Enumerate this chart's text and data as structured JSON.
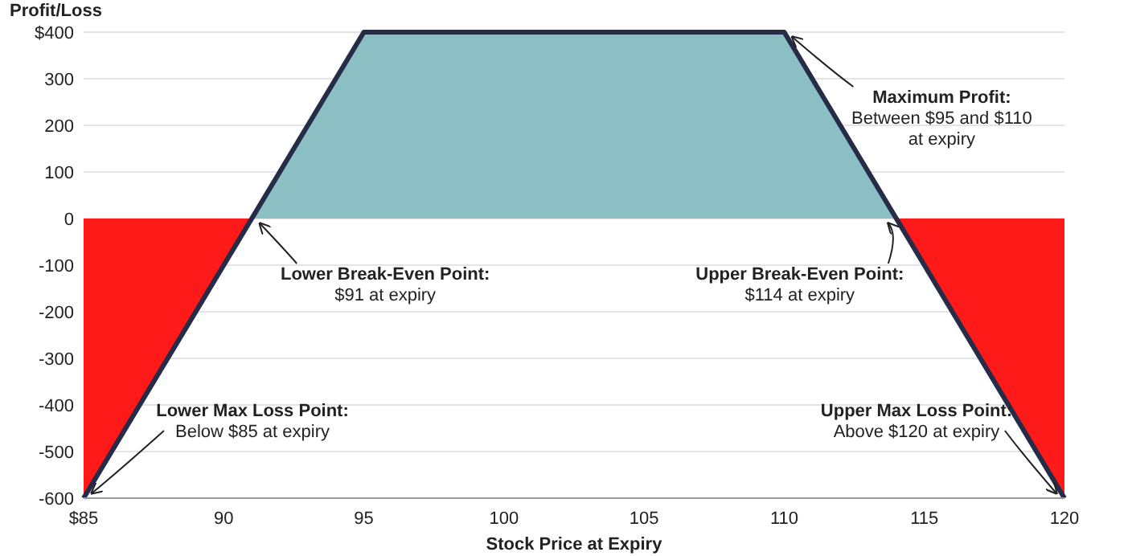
{
  "chart_data": {
    "type": "line",
    "xlabel": "Stock Price at Expiry",
    "ylabel": "Profit/Loss",
    "xlim": [
      85,
      120
    ],
    "xticks": [
      {
        "value": 85,
        "label": "$85"
      },
      90,
      95,
      100,
      105,
      110,
      115,
      120
    ],
    "ylim": [
      -600,
      400
    ],
    "yticks": [
      -600,
      -500,
      -400,
      -300,
      -200,
      -100,
      0,
      100,
      200,
      300,
      {
        "value": 400,
        "label": "$400"
      }
    ],
    "grid": "y",
    "marker": "none",
    "line_style": "solid",
    "series": [
      {
        "type": "area",
        "color": "#ff1a1a",
        "x": [
          85,
          91
        ],
        "values": [
          -600,
          0
        ]
      },
      {
        "type": "area",
        "color": "#8bbfc4",
        "x": [
          91,
          95,
          110,
          114
        ],
        "values": [
          0,
          400,
          400,
          0
        ]
      },
      {
        "type": "area",
        "color": "#ff1a1a",
        "x": [
          114,
          120
        ],
        "values": [
          0,
          -600
        ]
      },
      {
        "color": "#262b48",
        "x": [
          85,
          95,
          110,
          120
        ],
        "values": [
          -600,
          400,
          400,
          -600
        ]
      }
    ],
    "annotations": [
      {
        "text": "Maximum Profit:\nBetween $95 and $110\nat expiry",
        "x": 110,
        "y": 400
      },
      {
        "text": "Lower Break-Even Point:\n$91 at expiry",
        "x": 91,
        "y": 0
      },
      {
        "text": "Upper Break-Even Point:\n$114 at expiry",
        "x": 114,
        "y": 0
      },
      {
        "text": "Lower Max Loss Point:\nBelow $85 at expiry",
        "x": 85,
        "y": -600
      },
      {
        "text": "Upper Max Loss Point:\nAbove $120 at expiry",
        "x": 120,
        "y": -600
      }
    ]
  }
}
